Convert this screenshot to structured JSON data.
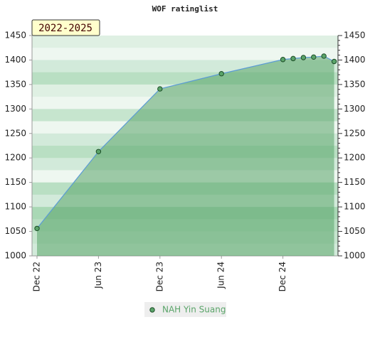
{
  "chart_data": {
    "type": "area",
    "title": "WOF ratinglist",
    "period": "2022-2025",
    "x": [
      "Dec 22",
      "Jun 23",
      "Dec 23",
      "Jun 24",
      "Dec 24",
      "Jan 25",
      "Feb 25",
      "Mar 25",
      "Apr 25",
      "May 25"
    ],
    "xticks": [
      "Dec 22",
      "Jun 23",
      "Dec 23",
      "Jun 24",
      "Dec 24"
    ],
    "series": [
      {
        "name": "NAH Yin Suang",
        "color": "#5aa469",
        "line_color": "#5b9bd5",
        "values": [
          1056,
          1213,
          1341,
          1372,
          1401,
          1403,
          1405,
          1406,
          1408,
          1397
        ]
      }
    ],
    "ylim": [
      1000,
      1450
    ],
    "yticks": [
      1000,
      1050,
      1100,
      1150,
      1200,
      1250,
      1300,
      1350,
      1400,
      1450
    ],
    "y2lim": [
      1000,
      1450
    ],
    "y2ticks": [
      1000,
      1050,
      1100,
      1150,
      1200,
      1250,
      1300,
      1350,
      1400,
      1450
    ],
    "legend": "bottom"
  }
}
